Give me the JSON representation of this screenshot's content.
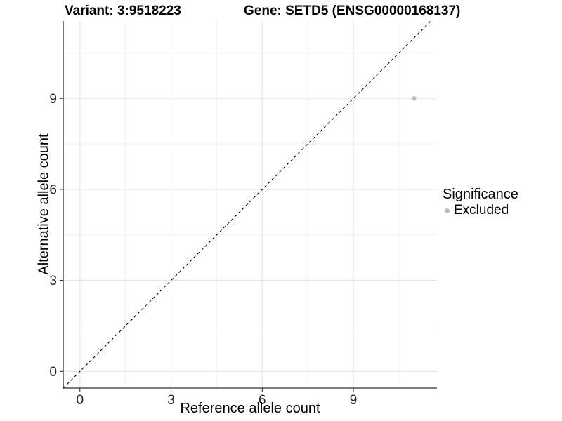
{
  "titles": {
    "left": "Variant: 3:9518223",
    "right": "Gene: SETD5 (ENSG00000168137)"
  },
  "chart_data": {
    "type": "scatter",
    "xlabel": "Reference allele count",
    "ylabel": "Alternative allele count",
    "xlim": [
      -0.55,
      11.75
    ],
    "ylim": [
      -0.55,
      11.55
    ],
    "xticks": [
      0,
      3,
      6,
      9
    ],
    "yticks": [
      0,
      3,
      6,
      9
    ],
    "x_minor_ticks": [
      1.5,
      4.5,
      7.5,
      10.5
    ],
    "y_minor_ticks": [
      1.5,
      4.5,
      7.5,
      10.5
    ],
    "grid": true,
    "series": [
      {
        "name": "Excluded",
        "color": "#bdbdbd",
        "points": [
          [
            11,
            9
          ]
        ]
      }
    ],
    "reference_line": {
      "kind": "identity",
      "slope": 1,
      "intercept": 0,
      "style": "dashed",
      "color": "#000000"
    },
    "legend": {
      "title": "Significance",
      "position": "right",
      "items": [
        {
          "label": "Excluded",
          "color": "#bdbdbd"
        }
      ]
    }
  },
  "colors": {
    "background": "#ffffff",
    "grid_major": "#e4e4e4",
    "grid_minor": "#f1f1f1",
    "axis_line": "#2f2f2f",
    "tick_label": "#262626",
    "point": "#bdbdbd"
  }
}
